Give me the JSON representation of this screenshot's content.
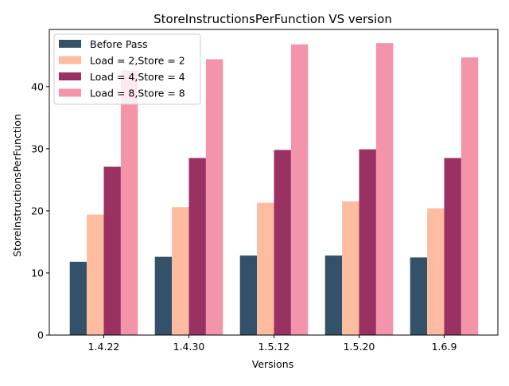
{
  "chart_data": {
    "type": "bar",
    "title": "StoreInstructionsPerFunction VS version",
    "xlabel": "Versions",
    "ylabel": "StoreInstructionsPerFunction",
    "categories": [
      "1.4.22",
      "1.4.30",
      "1.5.12",
      "1.5.20",
      "1.6.9"
    ],
    "ylim": [
      0,
      49.2
    ],
    "yticks": [
      0,
      10,
      20,
      30,
      40
    ],
    "grid": false,
    "legend_position": "top-left",
    "series": [
      {
        "name": "Before Pass",
        "color": "#34516a",
        "values": [
          11.8,
          12.6,
          12.8,
          12.8,
          12.5
        ]
      },
      {
        "name": "Load = 2,Store = 2",
        "color": "#fdbba0",
        "values": [
          19.4,
          20.6,
          21.3,
          21.5,
          20.4
        ]
      },
      {
        "name": "Load = 4,Store = 4",
        "color": "#993162",
        "values": [
          27.1,
          28.5,
          29.8,
          29.9,
          28.5
        ]
      },
      {
        "name": "Load = 8,Store = 8",
        "color": "#f394aa",
        "values": [
          42.6,
          44.4,
          46.8,
          47.0,
          44.7
        ]
      }
    ]
  }
}
